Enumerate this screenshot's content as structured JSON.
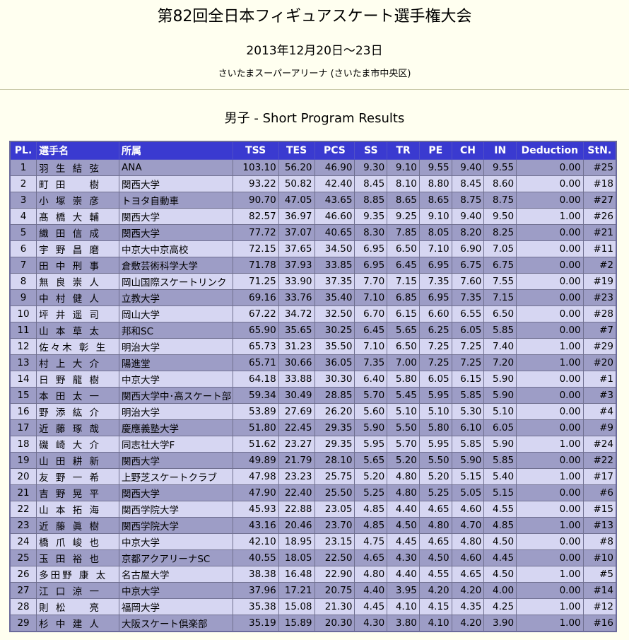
{
  "header": {
    "title": "第82回全日本フィギュアスケート選手権大会",
    "dates": "2013年12月20日～23日",
    "venue": "さいたまスーパーアリーナ (さいたま市中央区)"
  },
  "section_title": "男子 - Short Program Results",
  "columns": [
    "PL.",
    "選手名",
    "所属",
    "TSS",
    "TES",
    "PCS",
    "SS",
    "TR",
    "PE",
    "CH",
    "IN",
    "Deduction",
    "StN."
  ],
  "rows": [
    {
      "pl": "1",
      "name": "羽 生 結 弦",
      "club": "ANA",
      "tss": "103.10",
      "tes": "56.20",
      "pcs": "46.90",
      "ss": "9.30",
      "tr": "9.10",
      "pe": "9.55",
      "ch": "9.40",
      "in": "9.55",
      "ded": "0.00",
      "stn": "#25"
    },
    {
      "pl": "2",
      "name": "町 田 　 樹",
      "club": "関西大学",
      "tss": "93.22",
      "tes": "50.82",
      "pcs": "42.40",
      "ss": "8.45",
      "tr": "8.10",
      "pe": "8.80",
      "ch": "8.45",
      "in": "8.60",
      "ded": "0.00",
      "stn": "#18"
    },
    {
      "pl": "3",
      "name": "小 塚 崇 彦",
      "club": "トヨタ自動車",
      "tss": "90.70",
      "tes": "47.05",
      "pcs": "43.65",
      "ss": "8.85",
      "tr": "8.65",
      "pe": "8.65",
      "ch": "8.75",
      "in": "8.75",
      "ded": "0.00",
      "stn": "#27"
    },
    {
      "pl": "4",
      "name": "髙 橋 大 輔",
      "club": "関西大学",
      "tss": "82.57",
      "tes": "36.97",
      "pcs": "46.60",
      "ss": "9.35",
      "tr": "9.25",
      "pe": "9.10",
      "ch": "9.40",
      "in": "9.50",
      "ded": "1.00",
      "stn": "#26"
    },
    {
      "pl": "5",
      "name": "織 田 信 成",
      "club": "関西大学",
      "tss": "77.72",
      "tes": "37.07",
      "pcs": "40.65",
      "ss": "8.30",
      "tr": "7.85",
      "pe": "8.05",
      "ch": "8.20",
      "in": "8.25",
      "ded": "0.00",
      "stn": "#21"
    },
    {
      "pl": "6",
      "name": "宇 野 昌 磨",
      "club": "中京大中京高校",
      "tss": "72.15",
      "tes": "37.65",
      "pcs": "34.50",
      "ss": "6.95",
      "tr": "6.50",
      "pe": "7.10",
      "ch": "6.90",
      "in": "7.05",
      "ded": "0.00",
      "stn": "#11"
    },
    {
      "pl": "7",
      "name": "田 中 刑 事",
      "club": "倉敷芸術科学大学",
      "tss": "71.78",
      "tes": "37.93",
      "pcs": "33.85",
      "ss": "6.95",
      "tr": "6.45",
      "pe": "6.95",
      "ch": "6.75",
      "in": "6.75",
      "ded": "0.00",
      "stn": "#2"
    },
    {
      "pl": "8",
      "name": "無 良 崇 人",
      "club": "岡山国際スケートリンク",
      "tss": "71.25",
      "tes": "33.90",
      "pcs": "37.35",
      "ss": "7.70",
      "tr": "7.15",
      "pe": "7.35",
      "ch": "7.60",
      "in": "7.55",
      "ded": "0.00",
      "stn": "#19"
    },
    {
      "pl": "9",
      "name": "中 村 健 人",
      "club": "立教大学",
      "tss": "69.16",
      "tes": "33.76",
      "pcs": "35.40",
      "ss": "7.10",
      "tr": "6.85",
      "pe": "6.95",
      "ch": "7.35",
      "in": "7.15",
      "ded": "0.00",
      "stn": "#23"
    },
    {
      "pl": "10",
      "name": "坪 井 遥 司",
      "club": "岡山大学",
      "tss": "67.22",
      "tes": "34.72",
      "pcs": "32.50",
      "ss": "6.70",
      "tr": "6.15",
      "pe": "6.60",
      "ch": "6.55",
      "in": "6.50",
      "ded": "0.00",
      "stn": "#28"
    },
    {
      "pl": "11",
      "name": "山 本 草 太",
      "club": "邦和SC",
      "tss": "65.90",
      "tes": "35.65",
      "pcs": "30.25",
      "ss": "6.45",
      "tr": "5.65",
      "pe": "6.25",
      "ch": "6.05",
      "in": "5.85",
      "ded": "0.00",
      "stn": "#7"
    },
    {
      "pl": "12",
      "name": "佐々木 彰 生",
      "club": "明治大学",
      "tss": "65.73",
      "tes": "31.23",
      "pcs": "35.50",
      "ss": "7.10",
      "tr": "6.50",
      "pe": "7.25",
      "ch": "7.25",
      "in": "7.40",
      "ded": "1.00",
      "stn": "#29"
    },
    {
      "pl": "13",
      "name": "村 上 大 介",
      "club": "陽進堂",
      "tss": "65.71",
      "tes": "30.66",
      "pcs": "36.05",
      "ss": "7.35",
      "tr": "7.00",
      "pe": "7.25",
      "ch": "7.25",
      "in": "7.20",
      "ded": "1.00",
      "stn": "#20"
    },
    {
      "pl": "14",
      "name": "日 野 龍 樹",
      "club": "中京大学",
      "tss": "64.18",
      "tes": "33.88",
      "pcs": "30.30",
      "ss": "6.40",
      "tr": "5.80",
      "pe": "6.05",
      "ch": "6.15",
      "in": "5.90",
      "ded": "0.00",
      "stn": "#1"
    },
    {
      "pl": "15",
      "name": "本 田 太 一",
      "club": "関西大学中･高スケート部",
      "tss": "59.34",
      "tes": "30.49",
      "pcs": "28.85",
      "ss": "5.70",
      "tr": "5.45",
      "pe": "5.95",
      "ch": "5.85",
      "in": "5.90",
      "ded": "0.00",
      "stn": "#3"
    },
    {
      "pl": "16",
      "name": "野 添 紘 介",
      "club": "明治大学",
      "tss": "53.89",
      "tes": "27.69",
      "pcs": "26.20",
      "ss": "5.60",
      "tr": "5.10",
      "pe": "5.10",
      "ch": "5.30",
      "in": "5.10",
      "ded": "0.00",
      "stn": "#4"
    },
    {
      "pl": "17",
      "name": "近 藤 琢 哉",
      "club": "慶應義塾大学",
      "tss": "51.80",
      "tes": "22.45",
      "pcs": "29.35",
      "ss": "5.90",
      "tr": "5.50",
      "pe": "5.80",
      "ch": "6.10",
      "in": "6.05",
      "ded": "0.00",
      "stn": "#9"
    },
    {
      "pl": "18",
      "name": "磯 崎 大 介",
      "club": "同志社大学F",
      "tss": "51.62",
      "tes": "23.27",
      "pcs": "29.35",
      "ss": "5.95",
      "tr": "5.70",
      "pe": "5.95",
      "ch": "5.85",
      "in": "5.90",
      "ded": "1.00",
      "stn": "#24"
    },
    {
      "pl": "19",
      "name": "山 田 耕 新",
      "club": "関西大学",
      "tss": "49.89",
      "tes": "21.79",
      "pcs": "28.10",
      "ss": "5.65",
      "tr": "5.20",
      "pe": "5.50",
      "ch": "5.90",
      "in": "5.85",
      "ded": "0.00",
      "stn": "#22"
    },
    {
      "pl": "20",
      "name": "友 野 一 希",
      "club": "上野芝スケートクラブ",
      "tss": "47.98",
      "tes": "23.23",
      "pcs": "25.75",
      "ss": "5.20",
      "tr": "4.80",
      "pe": "5.20",
      "ch": "5.15",
      "in": "5.40",
      "ded": "1.00",
      "stn": "#17"
    },
    {
      "pl": "21",
      "name": "吉 野 晃 平",
      "club": "関西大学",
      "tss": "47.90",
      "tes": "22.40",
      "pcs": "25.50",
      "ss": "5.25",
      "tr": "4.80",
      "pe": "5.25",
      "ch": "5.05",
      "in": "5.15",
      "ded": "0.00",
      "stn": "#6"
    },
    {
      "pl": "22",
      "name": "山 本 拓 海",
      "club": "関西学院大学",
      "tss": "45.93",
      "tes": "22.88",
      "pcs": "23.05",
      "ss": "4.85",
      "tr": "4.40",
      "pe": "4.65",
      "ch": "4.60",
      "in": "4.55",
      "ded": "0.00",
      "stn": "#15"
    },
    {
      "pl": "23",
      "name": "近 藤 眞 樹",
      "club": "関西学院大学",
      "tss": "43.16",
      "tes": "20.46",
      "pcs": "23.70",
      "ss": "4.85",
      "tr": "4.50",
      "pe": "4.80",
      "ch": "4.70",
      "in": "4.85",
      "ded": "1.00",
      "stn": "#13"
    },
    {
      "pl": "24",
      "name": "橋 爪 峻 也",
      "club": "中京大学",
      "tss": "42.10",
      "tes": "18.95",
      "pcs": "23.15",
      "ss": "4.75",
      "tr": "4.45",
      "pe": "4.65",
      "ch": "4.80",
      "in": "4.50",
      "ded": "0.00",
      "stn": "#8"
    },
    {
      "pl": "25",
      "name": "玉 田 裕 也",
      "club": "京都アクアリーナSC",
      "tss": "40.55",
      "tes": "18.05",
      "pcs": "22.50",
      "ss": "4.65",
      "tr": "4.30",
      "pe": "4.50",
      "ch": "4.60",
      "in": "4.45",
      "ded": "0.00",
      "stn": "#10"
    },
    {
      "pl": "26",
      "name": "多田野 康 太",
      "club": "名古屋大学",
      "tss": "38.38",
      "tes": "16.48",
      "pcs": "22.90",
      "ss": "4.80",
      "tr": "4.40",
      "pe": "4.55",
      "ch": "4.65",
      "in": "4.50",
      "ded": "1.00",
      "stn": "#5"
    },
    {
      "pl": "27",
      "name": "江 口 涼 一",
      "club": "中京大学",
      "tss": "37.96",
      "tes": "17.21",
      "pcs": "20.75",
      "ss": "4.40",
      "tr": "3.95",
      "pe": "4.20",
      "ch": "4.20",
      "in": "4.00",
      "ded": "0.00",
      "stn": "#14"
    },
    {
      "pl": "28",
      "name": "則 松 　 亮",
      "club": "福岡大学",
      "tss": "35.38",
      "tes": "15.08",
      "pcs": "21.30",
      "ss": "4.45",
      "tr": "4.10",
      "pe": "4.15",
      "ch": "4.35",
      "in": "4.25",
      "ded": "1.00",
      "stn": "#12"
    },
    {
      "pl": "29",
      "name": "杉 中 建 人",
      "club": "大阪スケート倶楽部",
      "tss": "35.19",
      "tes": "15.89",
      "pcs": "20.30",
      "ss": "4.30",
      "tr": "3.80",
      "pe": "4.10",
      "ch": "4.20",
      "in": "3.90",
      "ded": "1.00",
      "stn": "#16"
    }
  ]
}
